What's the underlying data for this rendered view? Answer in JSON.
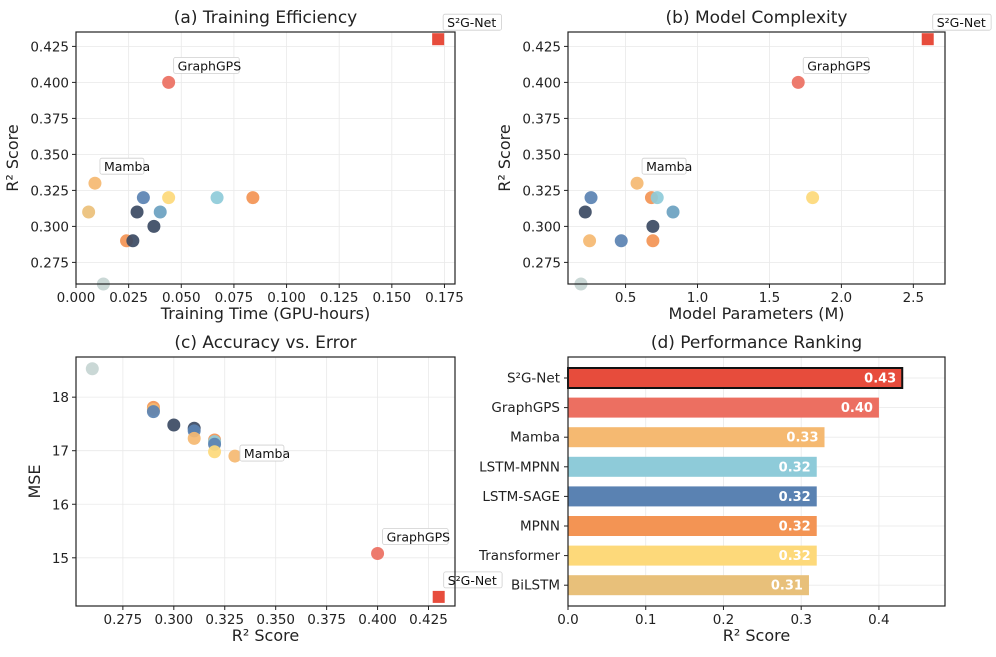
{
  "colors": {
    "S2GNet": "#e74c3c",
    "GraphGPS": "#ec6f61",
    "Mamba": "#f5b971",
    "LSTM-MPNN": "#8ecbd9",
    "LSTM-SAGE": "#5a82b2",
    "MPNN": "#f39454",
    "Transformer": "#fdd97a",
    "BiLSTM": "#e8c07a",
    "Dark": "#3b4a63",
    "Steel": "#6aa1c0",
    "Sand": "#ecc07a",
    "Gray": "#c6d5d3"
  },
  "chart_data": [
    {
      "id": "a",
      "type": "scatter",
      "title": "(a) Training Efficiency",
      "xlabel": "Training Time (GPU-hours)",
      "ylabel": "R² Score",
      "xlim": [
        0.0,
        0.18
      ],
      "ylim": [
        0.26,
        0.435
      ],
      "xticks": [
        "0.000",
        "0.025",
        "0.050",
        "0.075",
        "0.100",
        "0.125",
        "0.150",
        "0.175"
      ],
      "yticks": [
        "0.275",
        "0.300",
        "0.325",
        "0.350",
        "0.375",
        "0.400",
        "0.425"
      ],
      "grid": true,
      "points": [
        {
          "x": 0.172,
          "y": 0.43,
          "color": "S2GNet",
          "marker": "square",
          "label": "S²G-Net"
        },
        {
          "x": 0.044,
          "y": 0.4,
          "color": "GraphGPS",
          "label": "GraphGPS"
        },
        {
          "x": 0.009,
          "y": 0.33,
          "color": "Mamba",
          "label": "Mamba"
        },
        {
          "x": 0.006,
          "y": 0.31,
          "color": "Sand"
        },
        {
          "x": 0.029,
          "y": 0.31,
          "color": "Dark"
        },
        {
          "x": 0.032,
          "y": 0.32,
          "color": "LSTM-SAGE"
        },
        {
          "x": 0.044,
          "y": 0.32,
          "color": "Transformer"
        },
        {
          "x": 0.067,
          "y": 0.32,
          "color": "LSTM-MPNN"
        },
        {
          "x": 0.084,
          "y": 0.32,
          "color": "MPNN"
        },
        {
          "x": 0.04,
          "y": 0.31,
          "color": "Steel"
        },
        {
          "x": 0.037,
          "y": 0.3,
          "color": "Dark"
        },
        {
          "x": 0.024,
          "y": 0.29,
          "color": "MPNN"
        },
        {
          "x": 0.027,
          "y": 0.29,
          "color": "Dark"
        },
        {
          "x": 0.013,
          "y": 0.26,
          "color": "Gray"
        }
      ]
    },
    {
      "id": "b",
      "type": "scatter",
      "title": "(b) Model Complexity",
      "xlabel": "Model Parameters (M)",
      "ylabel": "R² Score",
      "xlim": [
        0.1,
        2.72
      ],
      "ylim": [
        0.26,
        0.435
      ],
      "xticks": [
        "0.5",
        "1.0",
        "1.5",
        "2.0",
        "2.5"
      ],
      "yticks": [
        "0.275",
        "0.300",
        "0.325",
        "0.350",
        "0.375",
        "0.400",
        "0.425"
      ],
      "grid": true,
      "points": [
        {
          "x": 2.6,
          "y": 0.43,
          "color": "S2GNet",
          "marker": "square",
          "label": "S²G-Net"
        },
        {
          "x": 1.7,
          "y": 0.4,
          "color": "GraphGPS",
          "label": "GraphGPS"
        },
        {
          "x": 0.58,
          "y": 0.33,
          "color": "Mamba",
          "label": "Mamba"
        },
        {
          "x": 0.26,
          "y": 0.32,
          "color": "LSTM-SAGE"
        },
        {
          "x": 0.68,
          "y": 0.32,
          "color": "MPNN"
        },
        {
          "x": 0.72,
          "y": 0.32,
          "color": "LSTM-MPNN"
        },
        {
          "x": 1.8,
          "y": 0.32,
          "color": "Transformer"
        },
        {
          "x": 0.22,
          "y": 0.31,
          "color": "Dark"
        },
        {
          "x": 0.83,
          "y": 0.31,
          "color": "Steel"
        },
        {
          "x": 0.69,
          "y": 0.3,
          "color": "Dark"
        },
        {
          "x": 0.25,
          "y": 0.29,
          "color": "Mamba"
        },
        {
          "x": 0.47,
          "y": 0.29,
          "color": "LSTM-SAGE"
        },
        {
          "x": 0.69,
          "y": 0.29,
          "color": "MPNN"
        },
        {
          "x": 0.19,
          "y": 0.26,
          "color": "Gray"
        }
      ]
    },
    {
      "id": "c",
      "type": "scatter",
      "title": "(c) Accuracy vs. Error",
      "xlabel": "R² Score",
      "ylabel": "MSE",
      "xlim": [
        0.252,
        0.438
      ],
      "ylim": [
        14.1,
        18.75
      ],
      "xticks": [
        "0.275",
        "0.300",
        "0.325",
        "0.350",
        "0.375",
        "0.400",
        "0.425"
      ],
      "yticks": [
        "15",
        "16",
        "17",
        "18"
      ],
      "grid": true,
      "points": [
        {
          "x": 0.43,
          "y": 14.27,
          "color": "S2GNet",
          "marker": "square",
          "label": "S²G-Net"
        },
        {
          "x": 0.4,
          "y": 15.08,
          "color": "GraphGPS",
          "label": "GraphGPS"
        },
        {
          "x": 0.33,
          "y": 16.9,
          "color": "Mamba",
          "label": "Mamba"
        },
        {
          "x": 0.26,
          "y": 18.53,
          "color": "Gray"
        },
        {
          "x": 0.29,
          "y": 17.81,
          "color": "MPNN"
        },
        {
          "x": 0.29,
          "y": 17.77,
          "color": "Mamba"
        },
        {
          "x": 0.29,
          "y": 17.73,
          "color": "LSTM-SAGE"
        },
        {
          "x": 0.3,
          "y": 17.48,
          "color": "Dark"
        },
        {
          "x": 0.31,
          "y": 17.42,
          "color": "Dark"
        },
        {
          "x": 0.31,
          "y": 17.37,
          "color": "LSTM-SAGE"
        },
        {
          "x": 0.31,
          "y": 17.23,
          "color": "Mamba"
        },
        {
          "x": 0.32,
          "y": 17.2,
          "color": "MPNN"
        },
        {
          "x": 0.32,
          "y": 17.17,
          "color": "LSTM-MPNN"
        },
        {
          "x": 0.32,
          "y": 17.12,
          "color": "LSTM-SAGE"
        },
        {
          "x": 0.32,
          "y": 16.98,
          "color": "Transformer"
        }
      ]
    },
    {
      "id": "d",
      "type": "bar",
      "orientation": "horizontal",
      "title": "(d) Performance Ranking",
      "xlabel": "R² Score",
      "xlim": [
        0.0,
        0.485
      ],
      "xticks": [
        "0.0",
        "0.1",
        "0.2",
        "0.3",
        "0.4"
      ],
      "grid": true,
      "categories": [
        "S²G-Net",
        "GraphGPS",
        "Mamba",
        "LSTM-MPNN",
        "LSTM-SAGE",
        "MPNN",
        "Transformer",
        "BiLSTM"
      ],
      "values": [
        0.43,
        0.4,
        0.33,
        0.32,
        0.32,
        0.32,
        0.32,
        0.31
      ],
      "value_labels": [
        "0.43",
        "0.40",
        "0.33",
        "0.32",
        "0.32",
        "0.32",
        "0.32",
        "0.31"
      ],
      "bar_colors": [
        "S2GNet",
        "GraphGPS",
        "Mamba",
        "LSTM-MPNN",
        "LSTM-SAGE",
        "MPNN",
        "Transformer",
        "BiLSTM"
      ],
      "highlight": "S²G-Net"
    }
  ]
}
